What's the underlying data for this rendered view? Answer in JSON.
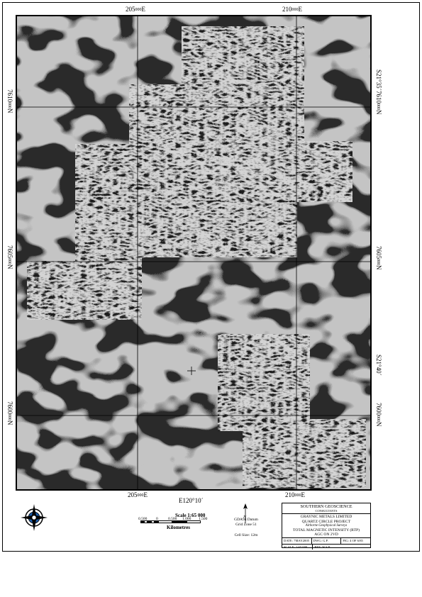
{
  "map": {
    "easting_labels": [
      "205000E",
      "210000E"
    ],
    "easting_top": [
      {
        "main": "205",
        "sub": "000",
        "suffix": "E"
      },
      {
        "main": "210",
        "sub": "000",
        "suffix": "E"
      }
    ],
    "northing_left": [
      {
        "main": "7610",
        "sub": "000",
        "suffix": "N"
      },
      {
        "main": "7605",
        "sub": "000",
        "suffix": "N"
      },
      {
        "main": "7600",
        "sub": "000",
        "suffix": "N"
      }
    ],
    "lat_labels": [
      "S21°35´",
      "S21°40´"
    ],
    "lon_label": "E120°10´"
  },
  "scale": {
    "title": "Scale 1:65 000",
    "ticks": [
      "0.500",
      "0",
      "0.500",
      "1.000",
      "1.500"
    ],
    "units": "Kilometres"
  },
  "notes": {
    "north_symbol": "N",
    "datum": "GDA94 Datum",
    "zone": "Grid Zone 51",
    "cell": "Cell Size: 12m"
  },
  "title_block": {
    "company": "SOUTHERN GEOSCIENCE",
    "company_sub": "CONSULTANTS",
    "client": "GRAYNIC METALS LIMITED",
    "project": "QUARTZ CIRCLE PROJECT",
    "survey": "Airborne Geophysical Surveys",
    "product_1": "TOTAL MAGNETIC INTENSITY (RTP)",
    "product_2": "AGC ON 2VD",
    "row1": [
      "DATE: 7MAY2005",
      "DWG: G.P.",
      "FIG: 4 OF 6/85"
    ],
    "row2": [
      "SCALE: 1:65 000",
      "REF: W.S.P."
    ]
  }
}
